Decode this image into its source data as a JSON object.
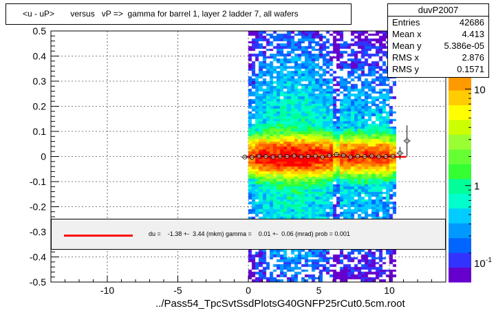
{
  "title": "<u - uP>       versus   vP =>  gamma for barrel 1, layer 2 ladder 7, all wafers",
  "stats": {
    "name": "duvP2007",
    "rows": [
      {
        "label": "Entries",
        "value": "42686"
      },
      {
        "label": "Mean x",
        "value": "4.413"
      },
      {
        "label": "Mean y",
        "value": "5.386e-05"
      },
      {
        "label": "RMS x",
        "value": "2.876"
      },
      {
        "label": "RMS y",
        "value": "0.1571"
      }
    ]
  },
  "legend": {
    "text": "du =    -1.38 +-  3.44 (mkm) gamma =    0.01 +-  0.06 (mrad) prob = 0.001",
    "line_color": "#ff0000"
  },
  "file_label": "../Pass54_TpcSvtSsdPlotsG40GNFP25rCut0.5cm.root",
  "colors": {
    "fit_line": "#ff0000",
    "profile_marker": "#000000",
    "palette": [
      "#6600cc",
      "#3333ff",
      "#0066ff",
      "#0099ff",
      "#00ccff",
      "#00ffcc",
      "#00ff99",
      "#33ff33",
      "#66ff33",
      "#99ff33",
      "#ccff00",
      "#ffff00",
      "#ffcc00",
      "#ff9900",
      "#ff6600",
      "#ff3300",
      "#ff0000"
    ]
  },
  "chart_data": {
    "type": "heatmap",
    "xlim": [
      -14,
      14
    ],
    "ylim": [
      -0.5,
      0.5
    ],
    "x_ticks": [
      -10,
      -5,
      0,
      5,
      10
    ],
    "x_tick_labels": [
      "-10",
      "-5",
      "0",
      "5",
      "10"
    ],
    "y_ticks": [
      -0.5,
      -0.4,
      -0.3,
      -0.2,
      -0.1,
      0,
      0.1,
      0.2,
      0.3,
      0.4,
      0.5
    ],
    "y_tick_labels": [
      "-0.5",
      "-0.4",
      "-0.3",
      "-0.2",
      "-0.1",
      "0",
      "0.1",
      "0.2",
      "0.3",
      "0.4",
      "0.5"
    ],
    "grid": true,
    "logz": true,
    "z_ticks": [
      1,
      10
    ],
    "z_tick_labels": [
      "1",
      "10"
    ],
    "z_bottom_label": "10",
    "z_bottom_exponent": "-1",
    "z_range": [
      0.1,
      40
    ],
    "heat_x_range": [
      0,
      10.5
    ],
    "heat_y_range": [
      -0.5,
      0.5
    ],
    "core_half_width": 0.05,
    "profile": {
      "x": [
        -0.25,
        0.25,
        0.75,
        1.25,
        1.75,
        2.25,
        2.75,
        3.25,
        3.75,
        4.25,
        4.75,
        5.25,
        5.75,
        6.25,
        6.75,
        7.25,
        7.75,
        8.25,
        8.75,
        9.25,
        9.75,
        10.25,
        10.75,
        11.25
      ],
      "y": [
        -0.002,
        -0.003,
        0.001,
        0.0,
        -0.002,
        0.001,
        0.0,
        0.002,
        -0.001,
        0.0,
        0.001,
        -0.002,
        0.003,
        0.008,
        0.004,
        -0.002,
        0.001,
        0.0,
        0.002,
        -0.001,
        0.0,
        0.001,
        0.013,
        0.062
      ],
      "err": [
        0.004,
        0.003,
        0.003,
        0.002,
        0.002,
        0.002,
        0.002,
        0.002,
        0.002,
        0.002,
        0.002,
        0.003,
        0.003,
        0.006,
        0.004,
        0.003,
        0.003,
        0.003,
        0.003,
        0.003,
        0.003,
        0.004,
        0.025,
        0.062
      ]
    },
    "fit": {
      "x": [
        -0.2,
        11.2
      ],
      "intercept": -0.00138,
      "slope": 1e-05
    }
  }
}
